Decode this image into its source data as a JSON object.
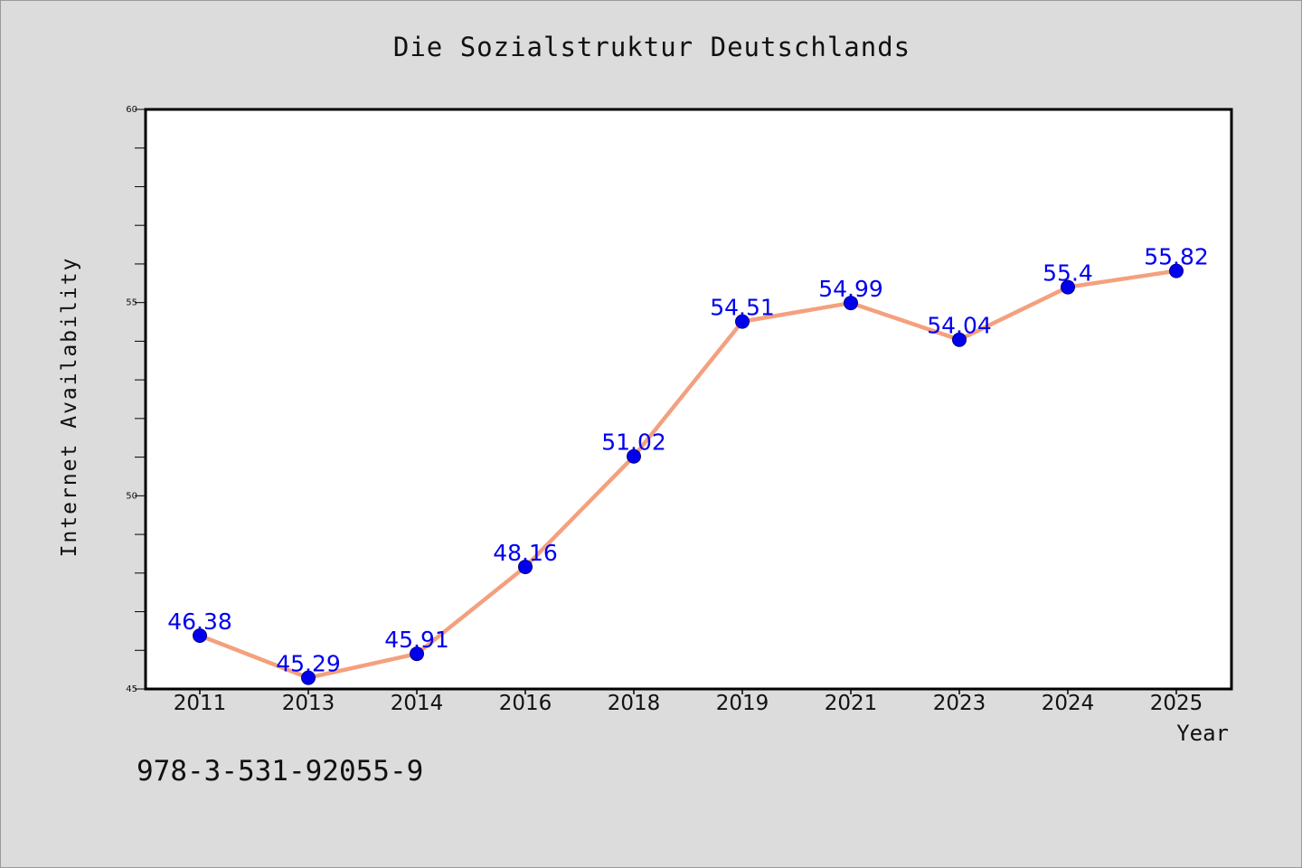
{
  "chart_data": {
    "type": "line",
    "title": "Die Sozialstruktur Deutschlands",
    "xlabel": "Year",
    "ylabel": "Internet Availability",
    "x": [
      "2011",
      "2013",
      "2014",
      "2016",
      "2018",
      "2019",
      "2021",
      "2023",
      "2024",
      "2025"
    ],
    "series": [
      {
        "values": [
          46.38,
          45.29,
          45.91,
          48.16,
          51.02,
          54.51,
          54.99,
          54.04,
          55.4,
          55.82
        ],
        "labels": [
          "46.38",
          "45.29",
          "45.91",
          "48.16",
          "51.02",
          "54.51",
          "54.99",
          "54.04",
          "55.4",
          "55.82"
        ],
        "line_color": "#f4a07e",
        "marker_color": "#0000ee",
        "label_color": "#0000ee"
      }
    ],
    "ylim": [
      45,
      60
    ],
    "yticks": [
      "45",
      "50",
      "55",
      "60"
    ],
    "grid": false,
    "legend": "none"
  },
  "footer_text": "978-3-531-92055-9",
  "colors": {
    "background": "#dcdcdc",
    "plot_background": "#ffffff",
    "axis": "#000000"
  }
}
